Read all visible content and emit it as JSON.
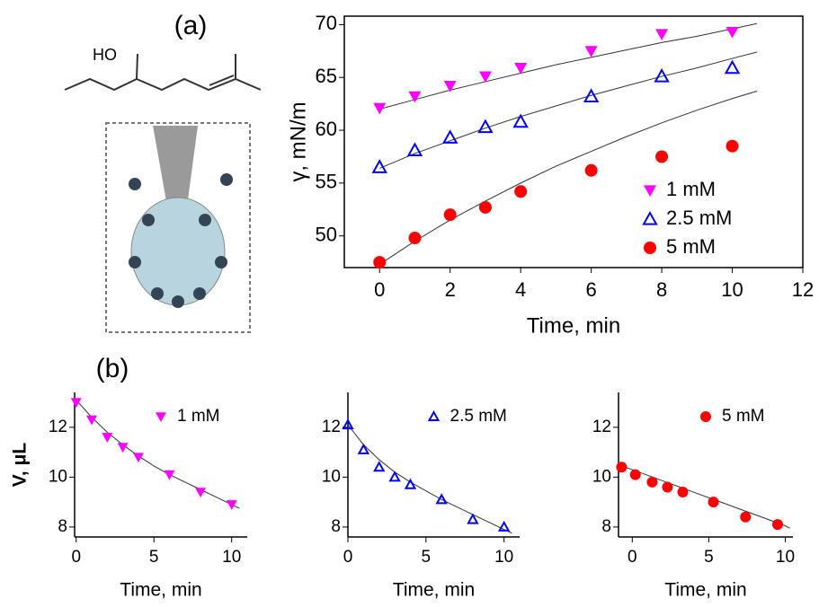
{
  "panel_labels": [
    "(a)",
    "(b)"
  ],
  "molecule": {
    "label": "HO"
  },
  "chart_data": [
    {
      "type": "scatter",
      "xlabel": "Time, min",
      "ylabel": "γ, mN/m",
      "xlim": [
        -1,
        12
      ],
      "ylim": [
        47,
        70.8
      ],
      "xticks": [
        0,
        2,
        4,
        6,
        8,
        10,
        12
      ],
      "yticks": [
        50,
        55,
        60,
        65,
        70
      ],
      "frame": true,
      "legend": "lower right",
      "series": [
        {
          "name": "1 mM",
          "color": "#ff00ff",
          "marker": "triangle-down",
          "x": [
            0,
            1,
            2,
            3,
            4,
            6,
            8,
            10
          ],
          "values": [
            62.1,
            63.2,
            64.2,
            65.1,
            65.9,
            67.5,
            69.1,
            69.3
          ],
          "fit": {
            "x": [
              0,
              1,
              2,
              3,
              4,
              5,
              6,
              7,
              8,
              9,
              10,
              10.7
            ],
            "values": [
              62.0,
              62.9,
              63.8,
              64.6,
              65.4,
              66.2,
              66.9,
              67.6,
              68.3,
              68.9,
              69.6,
              70.1
            ]
          }
        },
        {
          "name": "2.5 mM",
          "color": "#0000ff",
          "marker": "triangle-up-open",
          "x": [
            0,
            1,
            2,
            3,
            4,
            6,
            8,
            10
          ],
          "values": [
            56.5,
            58.1,
            59.3,
            60.3,
            60.8,
            63.2,
            65.1,
            65.9
          ],
          "fit": {
            "x": [
              0,
              1,
              2,
              3,
              4,
              5,
              6,
              7,
              8,
              9,
              10,
              10.7
            ],
            "values": [
              56.4,
              57.8,
              59.0,
              60.2,
              61.3,
              62.3,
              63.3,
              64.2,
              65.1,
              65.9,
              66.8,
              67.4
            ]
          }
        },
        {
          "name": "5 mM",
          "color": "#ff0000",
          "marker": "circle",
          "x": [
            0,
            1,
            2,
            3,
            4,
            6,
            8,
            10
          ],
          "values": [
            47.5,
            49.8,
            52.0,
            52.7,
            54.2,
            56.2,
            57.5,
            58.5
          ],
          "fit": {
            "x": [
              0,
              1,
              2,
              3,
              4,
              5,
              6,
              7,
              8,
              9,
              10,
              10.7
            ],
            "values": [
              47.3,
              49.5,
              51.5,
              53.3,
              55.0,
              56.6,
              58.0,
              59.4,
              60.7,
              61.9,
              63.0,
              63.7
            ]
          }
        }
      ]
    },
    {
      "type": "scatter",
      "xlabel": "Time, min",
      "ylabel": "V, μL",
      "xlim": [
        -0.1,
        11
      ],
      "ylim": [
        7.6,
        13.4
      ],
      "xticks": [
        0,
        5,
        10
      ],
      "yticks": [
        8,
        10,
        12
      ],
      "frame": false,
      "legend": "upper right",
      "series": [
        {
          "name": "1 mM",
          "color": "#ff00ff",
          "marker": "triangle-down",
          "x": [
            0,
            1,
            2,
            3,
            4,
            6,
            8,
            10
          ],
          "values": [
            13.0,
            12.3,
            11.6,
            11.2,
            10.8,
            10.1,
            9.4,
            8.9
          ],
          "fit": {
            "x": [
              0,
              1,
              2,
              3,
              4,
              5,
              6,
              7,
              8,
              9,
              10,
              10.5
            ],
            "values": [
              13.1,
              12.4,
              11.8,
              11.3,
              10.85,
              10.45,
              10.1,
              9.8,
              9.5,
              9.2,
              8.9,
              8.75
            ]
          }
        }
      ]
    },
    {
      "type": "scatter",
      "xlabel": "Time, min",
      "xlim": [
        0,
        11
      ],
      "ylim": [
        7.6,
        13.4
      ],
      "xticks": [
        0,
        5,
        10
      ],
      "yticks": [
        8,
        10,
        12
      ],
      "frame": false,
      "legend": "upper right",
      "series": [
        {
          "name": "2.5 mM",
          "color": "#0000ff",
          "marker": "triangle-up-open",
          "x": [
            0,
            1,
            2,
            3,
            4,
            6,
            8,
            10
          ],
          "values": [
            12.1,
            11.1,
            10.4,
            10.0,
            9.7,
            9.1,
            8.3,
            8.0
          ],
          "fit": {
            "x": [
              0,
              1,
              2,
              3,
              4,
              5,
              6,
              7,
              8,
              9,
              10,
              10.5
            ],
            "values": [
              12.1,
              11.3,
              10.7,
              10.2,
              9.8,
              9.45,
              9.1,
              8.8,
              8.5,
              8.2,
              7.9,
              7.75
            ]
          }
        }
      ]
    },
    {
      "type": "scatter",
      "xlabel": "Time, min",
      "xlim": [
        -0.9,
        10.5
      ],
      "ylim": [
        7.6,
        13.4
      ],
      "xticks": [
        0,
        5,
        10
      ],
      "yticks": [
        8,
        10,
        12
      ],
      "frame": false,
      "legend": "upper right",
      "series": [
        {
          "name": "5 mM",
          "color": "#ff0000",
          "marker": "circle",
          "x": [
            -0.7,
            0.2,
            1.3,
            2.3,
            3.3,
            5.3,
            7.4,
            9.5
          ],
          "values": [
            10.4,
            10.1,
            9.8,
            9.6,
            9.4,
            9.0,
            8.4,
            8.1
          ],
          "fit": {
            "x": [
              -0.9,
              0,
              2,
              4,
              6,
              8,
              10,
              10.3
            ],
            "values": [
              10.5,
              10.3,
              9.85,
              9.4,
              8.95,
              8.5,
              8.05,
              7.95
            ]
          }
        }
      ]
    }
  ]
}
